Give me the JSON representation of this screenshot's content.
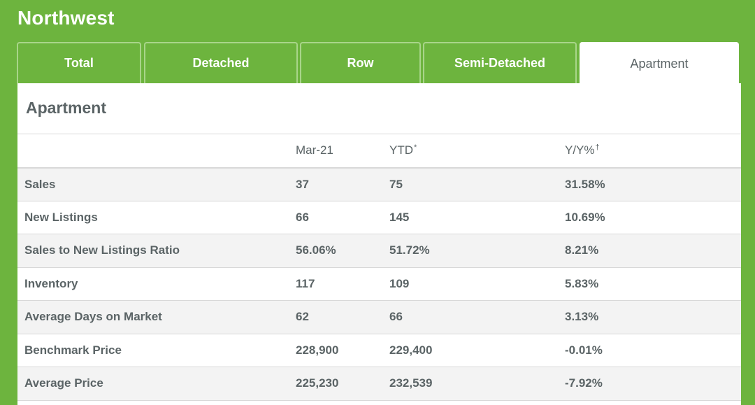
{
  "region": "Northwest",
  "tabs": [
    "Total",
    "Detached",
    "Row",
    "Semi-Detached",
    "Apartment"
  ],
  "active_tab": "Apartment",
  "panel_title": "Apartment",
  "table": {
    "columns": [
      "",
      "Mar-21",
      "YTD",
      "Y/Y%"
    ],
    "column_marks": [
      "",
      "",
      "*",
      "†"
    ],
    "rows": [
      [
        "Sales",
        "37",
        "75",
        "31.58%"
      ],
      [
        "New Listings",
        "66",
        "145",
        "10.69%"
      ],
      [
        "Sales to New Listings Ratio",
        "56.06%",
        "51.72%",
        "8.21%"
      ],
      [
        "Inventory",
        "117",
        "109",
        "5.83%"
      ],
      [
        "Average Days on Market",
        "62",
        "66",
        "3.13%"
      ],
      [
        "Benchmark Price",
        "228,900",
        "229,400",
        "-0.01%"
      ],
      [
        "Average Price",
        "225,230",
        "232,539",
        "-7.92%"
      ]
    ]
  },
  "colors": {
    "brand_green": "#6db43e",
    "text_gray": "#5b6466",
    "stripe": "#f3f3f3"
  }
}
